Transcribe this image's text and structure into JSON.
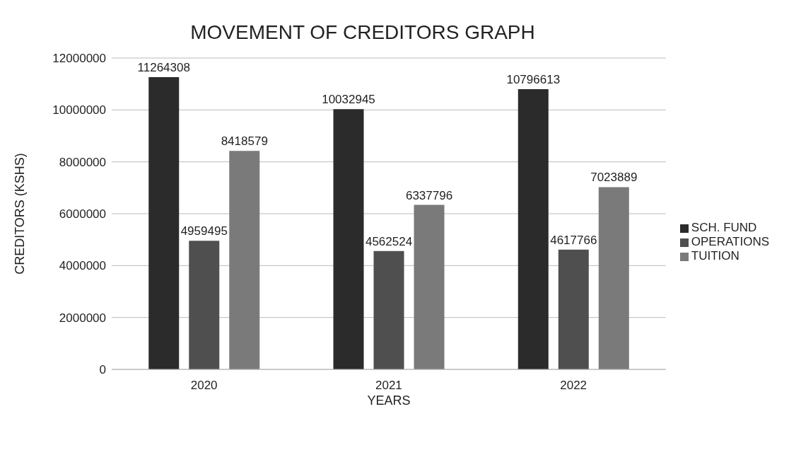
{
  "chart_data": {
    "type": "bar",
    "title": "MOVEMENT OF CREDITORS GRAPH",
    "xlabel": "YEARS",
    "ylabel": "CREDITORS (KSHS)",
    "categories": [
      "2020",
      "2021",
      "2022"
    ],
    "series": [
      {
        "name": "SCH. FUND",
        "color": "#2b2b2b",
        "values": [
          11264308,
          10032945,
          10796613
        ]
      },
      {
        "name": "OPERATIONS",
        "color": "#4f4f4f",
        "values": [
          4959495,
          4562524,
          4617766
        ]
      },
      {
        "name": "TUITION",
        "color": "#7a7a7a",
        "values": [
          8418579,
          6337796,
          7023889
        ]
      }
    ],
    "ylim": [
      0,
      12000000
    ],
    "yticks": [
      0,
      2000000,
      4000000,
      6000000,
      8000000,
      10000000,
      12000000
    ],
    "grid": "y",
    "legend": "right",
    "data_labels": true
  }
}
